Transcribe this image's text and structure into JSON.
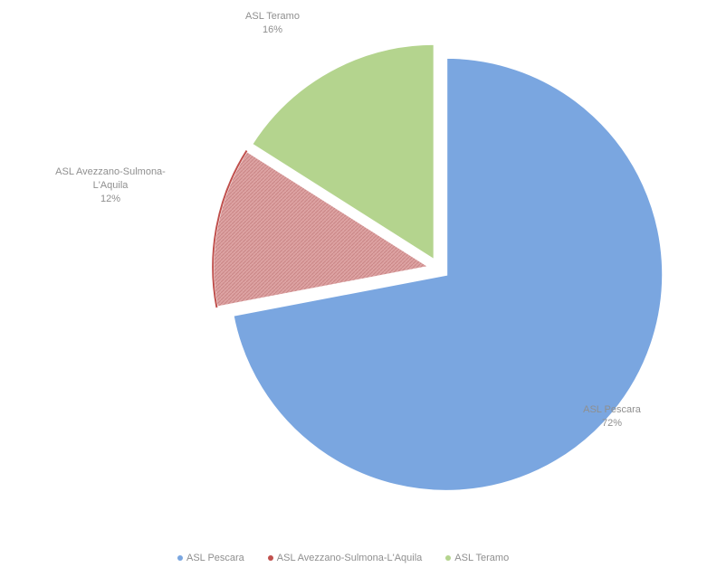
{
  "chart_data": {
    "type": "pie",
    "exploded": true,
    "slices": [
      {
        "name": "ASL Pescara",
        "value": 72,
        "label": "72%",
        "color": "#7aa6e0"
      },
      {
        "name": "ASL Avezzano-Sulmona-L'Aquila",
        "value": 12,
        "label": "12%",
        "color": "#d99a9a",
        "edge_color": "#c0504d"
      },
      {
        "name": "ASL Teramo",
        "value": 16,
        "label": "16%",
        "color": "#b4d48e"
      }
    ],
    "label_lines": [
      [
        "ASL Pescara",
        "72%"
      ],
      [
        "ASL Avezzano-Sulmona-",
        "L'Aquila",
        "12%"
      ],
      [
        "ASL Teramo",
        "16%"
      ]
    ],
    "legend": {
      "position": "bottom",
      "items": [
        "ASL Pescara",
        "ASL Avezzano-Sulmona-L'Aquila",
        "ASL Teramo"
      ]
    }
  }
}
